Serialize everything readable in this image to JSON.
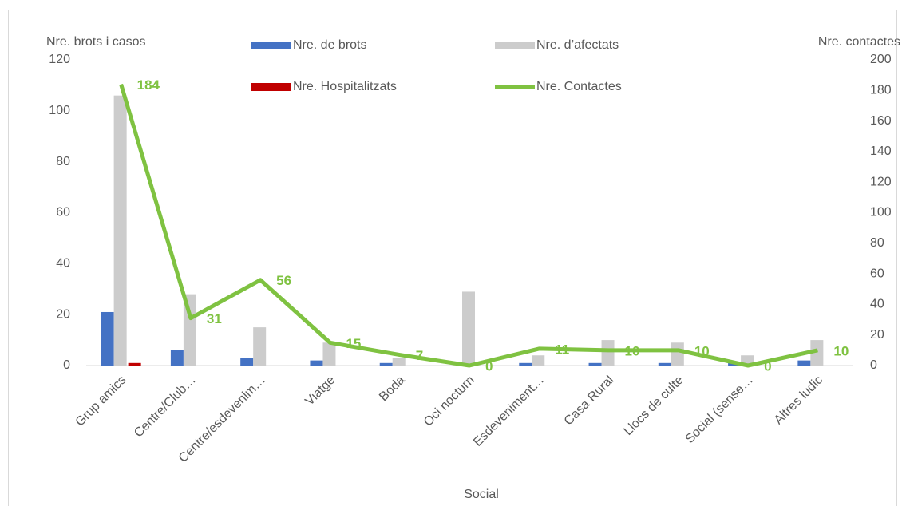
{
  "chart_data": {
    "type": "bar",
    "y_label": "Nre. brots i casos",
    "y2_label": "Nre. contactes",
    "x_label": "Social",
    "categories": [
      "Grup amics",
      "Centre/Club…",
      "Centre/esdevenim…",
      "Viatge",
      "Boda",
      "Oci nocturn",
      "Esdeveniment…",
      "Casa Rural",
      "Llocs de culte",
      "Social (sense…",
      "Altres ludic"
    ],
    "series": [
      {
        "name": "Nre. de brots",
        "type": "bar",
        "color": "#4472c4",
        "values": [
          21,
          6,
          3,
          2,
          1,
          0,
          1,
          1,
          1,
          1,
          2
        ]
      },
      {
        "name": "Nre. d’afectats",
        "type": "bar",
        "color": "#cccccc",
        "values": [
          106,
          28,
          15,
          9,
          3,
          29,
          4,
          10,
          9,
          4,
          10
        ]
      },
      {
        "name": "Nre. Hospitalitzats",
        "type": "bar",
        "color": "#c00000",
        "values": [
          1,
          0,
          0,
          0,
          0,
          0,
          0,
          0,
          0,
          0,
          0
        ]
      },
      {
        "name": "Nre. Contactes",
        "type": "line",
        "axis": "y2",
        "color": "#7fc241",
        "values": [
          184,
          31,
          56,
          15,
          7,
          0,
          11,
          10,
          10,
          0,
          10
        ]
      }
    ],
    "ylim": [
      0,
      120
    ],
    "yticks": [
      0,
      20,
      40,
      60,
      80,
      100,
      120
    ],
    "y2lim": [
      0,
      200
    ],
    "y2ticks": [
      0,
      20,
      40,
      60,
      80,
      100,
      120,
      140,
      160,
      180,
      200
    ],
    "grid": false,
    "legend": "top"
  }
}
